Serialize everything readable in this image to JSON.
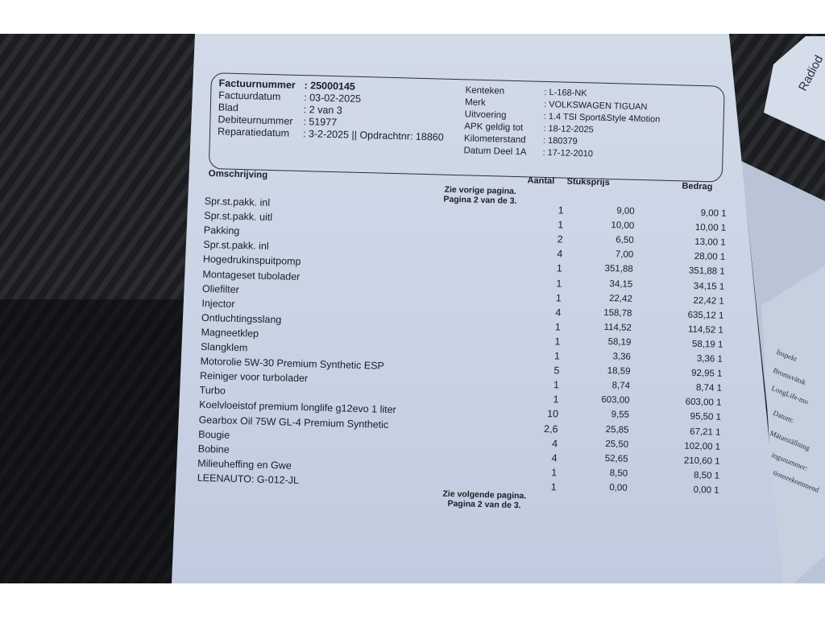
{
  "invoice": {
    "left_fields": [
      {
        "label": "Factuurnummer",
        "value": ": 25000145"
      },
      {
        "label": "Factuurdatum",
        "value": ": 03-02-2025"
      },
      {
        "label": "Blad",
        "value": ": 2 van 3"
      },
      {
        "label": "Debiteurnummer",
        "value": ": 51977"
      },
      {
        "label": "Reparatiedatum",
        "value": ": 3-2-2025 || Opdrachtnr: 18860"
      }
    ],
    "right_fields": [
      {
        "label": "Kenteken",
        "value": ": L-168-NK"
      },
      {
        "label": "Merk",
        "value": ": VOLKSWAGEN TIGUAN"
      },
      {
        "label": "Uitvoering",
        "value": ": 1.4 TSI Sport&Style 4Motion"
      },
      {
        "label": "APK geldig tot",
        "value": ": 18-12-2025"
      },
      {
        "label": "Kilometerstand",
        "value": ": 180379"
      },
      {
        "label": "Datum Deel 1A",
        "value": ": 17-12-2010"
      }
    ],
    "columns": {
      "description": "Omschrijving",
      "quantity": "Aantal",
      "unit_price": "Stuksprijs",
      "amount": "Bedrag"
    },
    "note_top": [
      "Zie vorige pagina.",
      "Pagina 2 van de 3."
    ],
    "lines": [
      {
        "desc": "Spr.st.pakk. inl",
        "qty": "1",
        "price": "9,00",
        "amount": "9,00 1"
      },
      {
        "desc": "Spr.st.pakk. uitl",
        "qty": "1",
        "price": "10,00",
        "amount": "10,00 1"
      },
      {
        "desc": "Pakking",
        "qty": "2",
        "price": "6,50",
        "amount": "13,00 1"
      },
      {
        "desc": "Spr.st.pakk. inl",
        "qty": "4",
        "price": "7,00",
        "amount": "28,00 1"
      },
      {
        "desc": "Hogedrukinspuitpomp",
        "qty": "1",
        "price": "351,88",
        "amount": "351,88 1"
      },
      {
        "desc": "Montageset tubolader",
        "qty": "1",
        "price": "34,15",
        "amount": "34,15 1"
      },
      {
        "desc": "Oliefilter",
        "qty": "1",
        "price": "22,42",
        "amount": "22,42 1"
      },
      {
        "desc": "Injector",
        "qty": "4",
        "price": "158,78",
        "amount": "635,12 1"
      },
      {
        "desc": "Ontluchtingsslang",
        "qty": "1",
        "price": "114,52",
        "amount": "114,52 1"
      },
      {
        "desc": "Magneetklep",
        "qty": "1",
        "price": "58,19",
        "amount": "58,19 1"
      },
      {
        "desc": "Slangklem",
        "qty": "1",
        "price": "3,36",
        "amount": "3,36 1"
      },
      {
        "desc": "Motorolie 5W-30 Premium Synthetic ESP",
        "qty": "5",
        "price": "18,59",
        "amount": "92,95 1"
      },
      {
        "desc": "Reiniger voor turbolader",
        "qty": "1",
        "price": "8,74",
        "amount": "8,74 1"
      },
      {
        "desc": "Turbo",
        "qty": "1",
        "price": "603,00",
        "amount": "603,00 1"
      },
      {
        "desc": "Koelvloeistof premium longlife g12evo 1 liter",
        "qty": "10",
        "price": "9,55",
        "amount": "95,50 1"
      },
      {
        "desc": "Gearbox Oil 75W GL-4 Premium Synthetic",
        "qty": "2,6",
        "price": "25,85",
        "amount": "67,21 1"
      },
      {
        "desc": "Bougie",
        "qty": "4",
        "price": "25,50",
        "amount": "102,00 1"
      },
      {
        "desc": "Bobine",
        "qty": "4",
        "price": "52,65",
        "amount": "210,60 1"
      },
      {
        "desc": "Milieuheffing en Gwe",
        "qty": "1",
        "price": "8,50",
        "amount": "8,50 1"
      },
      {
        "desc": "LEENAUTO: G-012-JL",
        "qty": "1",
        "price": "0,00",
        "amount": "0,00 1"
      }
    ],
    "note_bottom": [
      "Zie volgende pagina.",
      "Pagina 2 van de 3."
    ]
  },
  "side_papers": {
    "top_fragment": "Radiod",
    "form_fragments": [
      "Inspekt",
      "Bromsvätsk",
      "LongLife-mo",
      "Datum:",
      "Mätarställning",
      "ingsnummer:",
      "tionsrekommend"
    ]
  }
}
